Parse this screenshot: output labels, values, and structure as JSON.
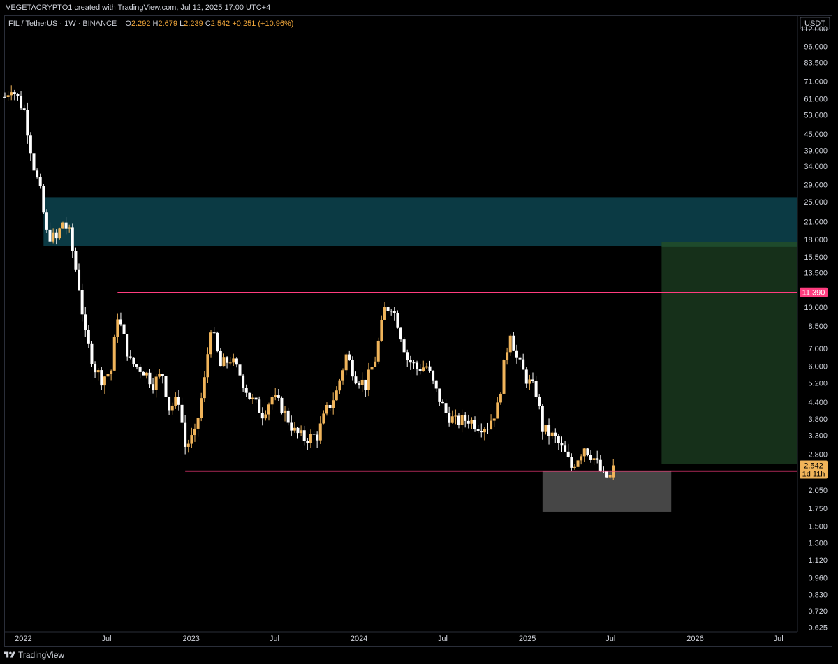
{
  "header": {
    "attribution": "VEGETACRYPTO1 created with TradingView.com, Jul 12, 2025 17:00 UTC+4"
  },
  "legend": {
    "symbol": "FIL / TetherUS · 1W · BINANCE",
    "o_label": "O",
    "o_value": "2.292",
    "h_label": "H",
    "h_value": "2.679",
    "l_label": "L",
    "l_value": "2.239",
    "c_label": "C",
    "c_value": "2.542",
    "change": "+0.251 (+10.96%)"
  },
  "footer": {
    "brand": "TradingView"
  },
  "colors": {
    "background": "#000000",
    "up_candle": "#f0b45a",
    "down_candle": "#ffffff",
    "supply_zone": "#0b3a44",
    "target_zone": "#16301a",
    "target_zone_top": "#1e4a2c",
    "stop_zone": "#4a4a4a",
    "level_line": "#ff3d7f",
    "current_price_badge": "#f0b45a",
    "level_badge": "#ff3d7f"
  },
  "chart_data": {
    "type": "candlestick",
    "symbol": "FIL / TetherUS",
    "interval": "1W",
    "exchange": "BINANCE",
    "scale": "log",
    "y_unit": "USDT",
    "ylim": [
      0.6,
      125
    ],
    "xlim": [
      "2021-11-22",
      "2026-08-10"
    ],
    "y_ticks": [
      "112.000",
      "96.000",
      "83.500",
      "71.000",
      "61.000",
      "53.000",
      "45.000",
      "39.000",
      "34.000",
      "29.000",
      "25.000",
      "21.000",
      "18.000",
      "15.500",
      "13.500",
      "10.000",
      "8.500",
      "7.000",
      "6.000",
      "5.200",
      "4.400",
      "3.800",
      "3.300",
      "2.800",
      "2.050",
      "1.750",
      "1.500",
      "1.300",
      "1.120",
      "0.960",
      "0.830",
      "0.720",
      "0.625"
    ],
    "x_ticks": [
      {
        "label": "2022",
        "date": "2022-01-01"
      },
      {
        "label": "Jul",
        "date": "2022-07-01"
      },
      {
        "label": "2023",
        "date": "2023-01-01"
      },
      {
        "label": "Jul",
        "date": "2023-07-01"
      },
      {
        "label": "2024",
        "date": "2024-01-01"
      },
      {
        "label": "Jul",
        "date": "2024-07-01"
      },
      {
        "label": "2025",
        "date": "2025-01-01"
      },
      {
        "label": "Jul",
        "date": "2025-07-01"
      },
      {
        "label": "2026",
        "date": "2026-01-01"
      },
      {
        "label": "Jul",
        "date": "2026-07-01"
      }
    ],
    "ohlc_anchors": [
      [
        "2021-11-22",
        62,
        80
      ],
      [
        "2021-12-06",
        68,
        76
      ],
      [
        "2022-01-03",
        55,
        60
      ],
      [
        "2022-01-24",
        34,
        38
      ],
      [
        "2022-02-07",
        27,
        22
      ],
      [
        "2022-02-21",
        19,
        21
      ],
      [
        "2022-03-14",
        18,
        19
      ],
      [
        "2022-03-28",
        21,
        26
      ],
      [
        "2022-04-11",
        19,
        20
      ],
      [
        "2022-05-02",
        12,
        14
      ],
      [
        "2022-05-16",
        7.8,
        8.7
      ],
      [
        "2022-06-06",
        5.9,
        6.3
      ],
      [
        "2022-06-20",
        5.4,
        5.5
      ],
      [
        "2022-07-11",
        5.8,
        5.6
      ],
      [
        "2022-07-25",
        9.4,
        10.8
      ],
      [
        "2022-08-22",
        6.2,
        6.7
      ],
      [
        "2022-09-19",
        5.8,
        5.6
      ],
      [
        "2022-10-10",
        5.2,
        5.4
      ],
      [
        "2022-10-31",
        5.6,
        5.3
      ],
      [
        "2022-11-14",
        4.2,
        4.3
      ],
      [
        "2022-12-05",
        4.5,
        4.3
      ],
      [
        "2022-12-19",
        3.0,
        2.5
      ],
      [
        "2023-01-09",
        3.3,
        3.6
      ],
      [
        "2023-01-30",
        5.3,
        6.1
      ],
      [
        "2023-02-13",
        8.5,
        9.2
      ],
      [
        "2023-03-06",
        6.0,
        6.5
      ],
      [
        "2023-03-27",
        6.4,
        6.4
      ],
      [
        "2023-04-17",
        5.6,
        5.4
      ],
      [
        "2023-05-08",
        4.6,
        4.8
      ],
      [
        "2023-06-05",
        4.0,
        3.0
      ],
      [
        "2023-06-26",
        4.6,
        4.7
      ],
      [
        "2023-07-17",
        4.2,
        4.4
      ],
      [
        "2023-08-14",
        3.4,
        3.5
      ],
      [
        "2023-09-04",
        3.2,
        3.3
      ],
      [
        "2023-10-02",
        3.3,
        3.4
      ],
      [
        "2023-10-23",
        4.1,
        4.3
      ],
      [
        "2023-11-13",
        4.8,
        5.0
      ],
      [
        "2023-12-04",
        6.6,
        7.1
      ],
      [
        "2023-12-25",
        5.5,
        5.8
      ],
      [
        "2024-01-15",
        5.1,
        5.2
      ],
      [
        "2024-02-05",
        6.4,
        6.9
      ],
      [
        "2024-02-26",
        9.8,
        10.5
      ],
      [
        "2024-03-11",
        10.2,
        11.8
      ],
      [
        "2024-03-25",
        8.8,
        10.1
      ],
      [
        "2024-04-15",
        6.4,
        6.8
      ],
      [
        "2024-05-06",
        5.9,
        6.2
      ],
      [
        "2024-05-27",
        6.0,
        6.3
      ],
      [
        "2024-06-17",
        4.8,
        5.0
      ],
      [
        "2024-07-08",
        4.0,
        4.2
      ],
      [
        "2024-07-29",
        3.7,
        3.3
      ],
      [
        "2024-08-26",
        3.8,
        4.0
      ],
      [
        "2024-09-16",
        3.6,
        3.8
      ],
      [
        "2024-10-07",
        3.6,
        3.5
      ],
      [
        "2024-10-28",
        4.2,
        4.4
      ],
      [
        "2024-11-11",
        6.0,
        6.4
      ],
      [
        "2024-11-25",
        8.2,
        8.7
      ],
      [
        "2024-12-09",
        6.4,
        6.9
      ],
      [
        "2024-12-30",
        5.4,
        5.6
      ],
      [
        "2025-01-20",
        4.8,
        5.0
      ],
      [
        "2025-02-03",
        3.5,
        3.4
      ],
      [
        "2025-03-03",
        3.2,
        3.3
      ],
      [
        "2025-03-24",
        2.8,
        2.9
      ],
      [
        "2025-04-07",
        2.5,
        2.3
      ],
      [
        "2025-05-05",
        3.0,
        3.2
      ],
      [
        "2025-05-26",
        2.7,
        2.8
      ],
      [
        "2025-06-16",
        2.3,
        2.1
      ],
      [
        "2025-07-07",
        2.29,
        2.679
      ]
    ],
    "last_candle": {
      "date": "2025-07-07",
      "open": 2.292,
      "high": 2.679,
      "low": 2.239,
      "close": 2.542
    },
    "levels": [
      {
        "name": "range-high",
        "price": 11.39,
        "from": "2022-07-25",
        "to": "2026-08-10",
        "label": "11.390"
      },
      {
        "name": "range-low",
        "price": 2.419,
        "from": "2022-12-19",
        "to": "2026-08-10",
        "label": "2.419"
      }
    ],
    "zones": [
      {
        "name": "supply-zone",
        "from": "2022-02-14",
        "to": "2026-08-10",
        "low": 17.0,
        "high": 26.0
      },
      {
        "name": "target-zone",
        "from": "2025-10-20",
        "to": "2026-08-10",
        "low": 2.58,
        "high": 17.6
      },
      {
        "name": "stop-zone",
        "from": "2025-02-03",
        "to": "2025-11-10",
        "low": 1.7,
        "high": 2.42
      }
    ],
    "price_badge": {
      "price": 2.542,
      "label": "2.542",
      "countdown": "1d 11h"
    }
  }
}
